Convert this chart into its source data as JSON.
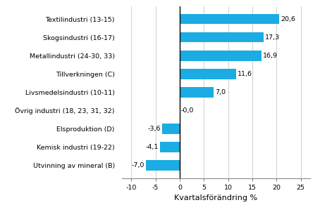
{
  "categories": [
    "Utvinning av mineral (B)",
    "Kemisk industri (19-22)",
    "Elsproduktion (D)",
    "Övrig industri (18, 23, 31, 32)",
    "Livsmedelsindustri (10-11)",
    "Tillverkningen (C)",
    "Metallindustri (24-30, 33)",
    "Skogsindustri (16-17)",
    "Textilindustri (13-15)"
  ],
  "values": [
    -7.0,
    -4.1,
    -3.6,
    -0.0,
    7.0,
    11.6,
    16.9,
    17.3,
    20.6
  ],
  "bar_color": "#1aace3",
  "xlabel": "Kvartalsförändring %",
  "xlim": [
    -12,
    27
  ],
  "xticks": [
    -10,
    -5,
    0,
    5,
    10,
    15,
    20,
    25
  ],
  "label_fontsize": 6.8,
  "xlabel_fontsize": 8,
  "value_labels": [
    "-7,0",
    "-4,1",
    "-3,6",
    "-0,0",
    "7,0",
    "11,6",
    "16,9",
    "17,3",
    "20,6"
  ],
  "background_color": "#ffffff",
  "grid_color": "#d0d0d0"
}
